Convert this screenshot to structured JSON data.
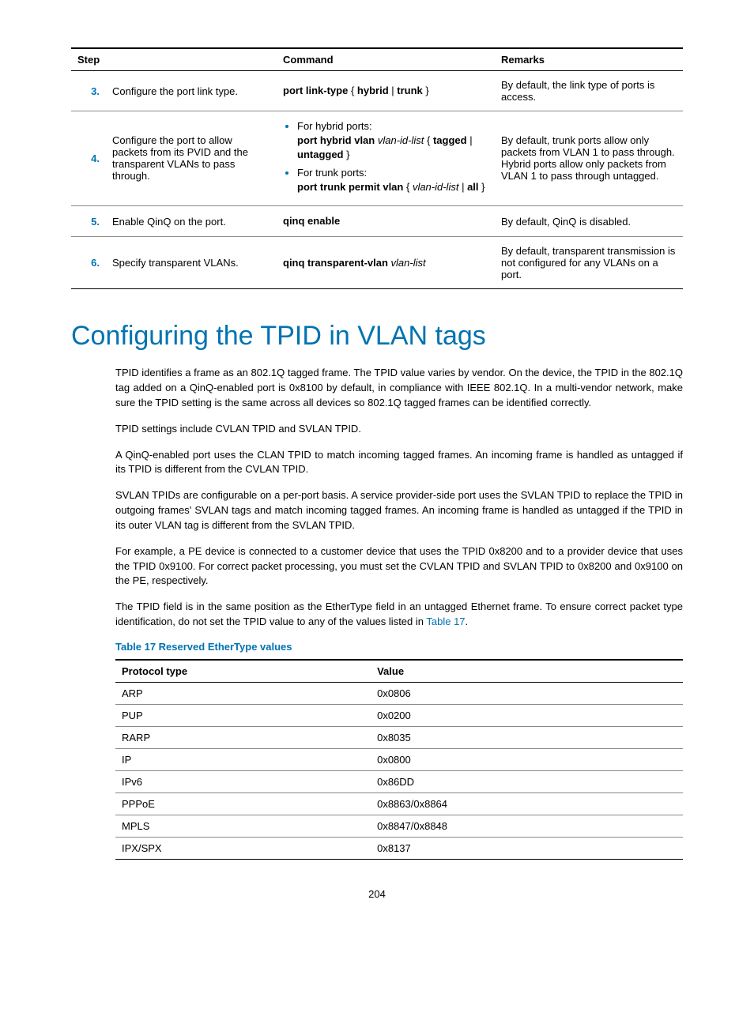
{
  "steps_table": {
    "headers": [
      "Step",
      "Command",
      "Remarks"
    ],
    "rows": [
      {
        "num": "3.",
        "desc": "Configure the port link type.",
        "cmd_html": "<span class='b'>port link-type</span> { <span class='b'>hybrid</span> | <span class='b'>trunk</span> }",
        "remarks": "By default, the link type of ports is access."
      },
      {
        "num": "4.",
        "desc": "Configure the port to allow packets from its PVID and the transparent VLANs to pass through.",
        "cmd_html": "<ul class='bul'><li>For hybrid ports:<br><span class='b'>port hybrid vlan</span> <span class='i'>vlan-id-list</span> { <span class='b'>tagged</span> | <span class='b'>untagged</span> }</li><li>For trunk ports:<br><span class='b'>port trunk permit vlan</span> { <span class='i'>vlan-id-list</span> | <span class='b'>all</span> }</li></ul>",
        "remarks": "By default, trunk ports allow only packets from VLAN 1 to pass through. Hybrid ports allow only packets from VLAN 1 to pass through untagged."
      },
      {
        "num": "5.",
        "desc": "Enable QinQ on the port.",
        "cmd_html": "<span class='b'>qinq enable</span>",
        "remarks": "By default, QinQ is disabled."
      },
      {
        "num": "6.",
        "desc": "Specify transparent VLANs.",
        "cmd_html": "<span class='b'>qinq transparent-vlan</span> <span class='i'>vlan-list</span>",
        "remarks": "By default, transparent transmission is not configured for any VLANs on a port."
      }
    ]
  },
  "heading": "Configuring the TPID in VLAN tags",
  "paragraphs": [
    "TPID identifies a frame as an 802.1Q tagged frame. The TPID value varies by vendor. On the device, the TPID in the 802.1Q tag added on a QinQ-enabled port is 0x8100 by default, in compliance with IEEE 802.1Q. In a multi-vendor network, make sure the TPID setting is the same across all devices so 802.1Q tagged frames can be identified correctly.",
    "TPID settings include CVLAN TPID and SVLAN TPID.",
    "A QinQ-enabled port uses the CLAN TPID to match incoming tagged frames. An incoming frame is handled as untagged if its TPID is different from the CVLAN TPID.",
    "SVLAN TPIDs are configurable on a per-port basis. A service provider-side port uses the SVLAN TPID to replace the TPID in outgoing frames' SVLAN tags and match incoming tagged frames. An incoming frame is handled as untagged if the TPID in its outer VLAN tag is different from the SVLAN TPID.",
    "For example, a PE device is connected to a customer device that uses the TPID 0x8200 and to a provider device that uses the TPID 0x9100. For correct packet processing, you must set the CVLAN TPID and SVLAN TPID to 0x8200 and 0x9100 on the PE, respectively."
  ],
  "para_with_link_prefix": "The TPID field is in the same position as the EtherType field in an untagged Ethernet frame. To ensure correct packet type identification, do not set the TPID value to any of the values listed in ",
  "para_link_text": "Table 17",
  "table_caption": "Table 17 Reserved EtherType values",
  "ether_table": {
    "headers": [
      "Protocol type",
      "Value"
    ],
    "rows": [
      [
        "ARP",
        "0x0806"
      ],
      [
        "PUP",
        "0x0200"
      ],
      [
        "RARP",
        "0x8035"
      ],
      [
        "IP",
        "0x0800"
      ],
      [
        "IPv6",
        "0x86DD"
      ],
      [
        "PPPoE",
        "0x8863/0x8864"
      ],
      [
        "MPLS",
        "0x8847/0x8848"
      ],
      [
        "IPX/SPX",
        "0x8137"
      ]
    ]
  },
  "page_number": "204",
  "colors": {
    "accent": "#0073b0",
    "text": "#000000",
    "row_border": "#888888"
  }
}
